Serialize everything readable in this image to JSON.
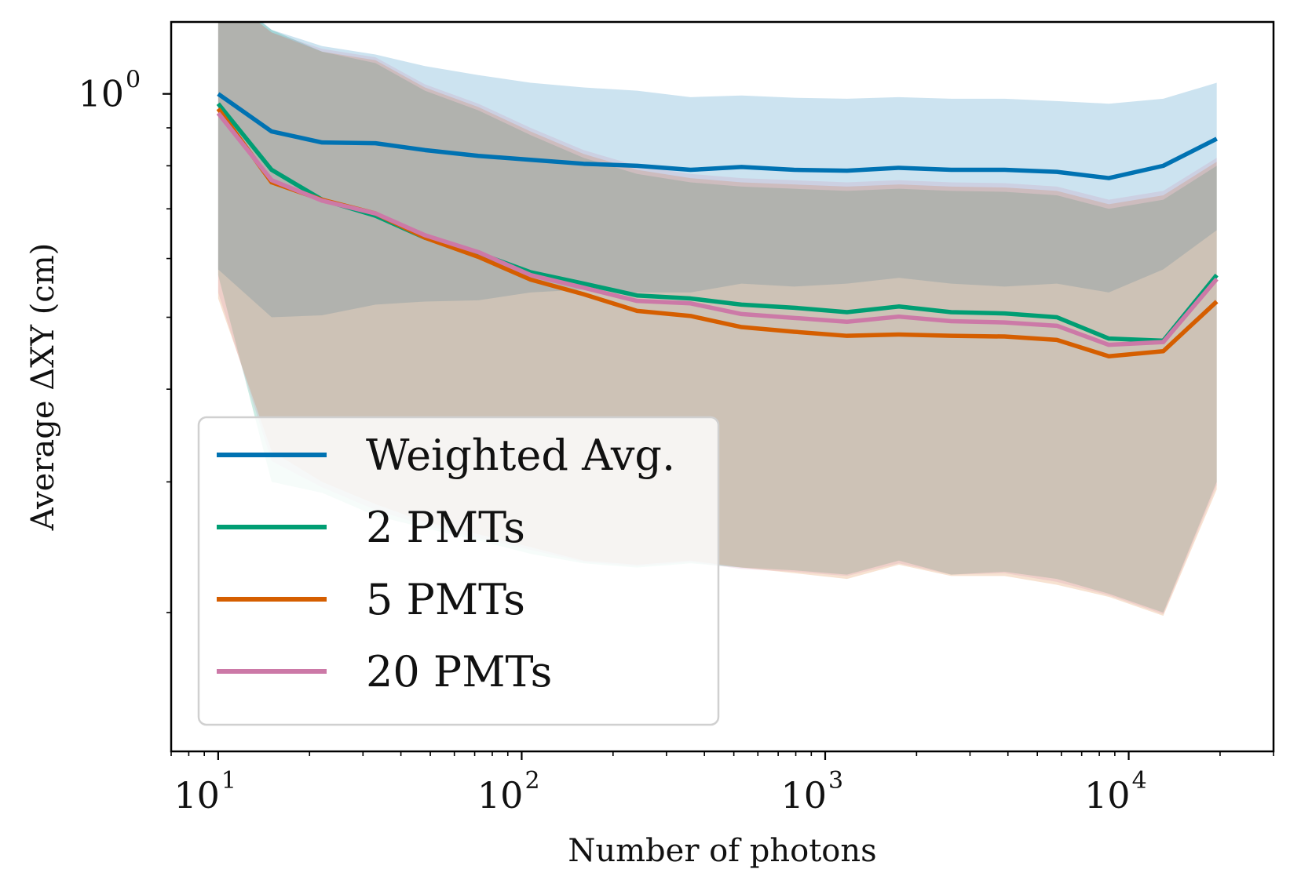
{
  "chart_data": {
    "type": "line",
    "title": "",
    "xlabel": "Number of photons",
    "ylabel": "Average ΔXY (cm)",
    "xscale": "log",
    "yscale": "log",
    "xlim": [
      7.0,
      30000
    ],
    "ylim": [
      0.13,
      1.25
    ],
    "x_ticks": [
      {
        "base": "10",
        "exp": "1",
        "value": 10
      },
      {
        "base": "10",
        "exp": "2",
        "value": 100
      },
      {
        "base": "10",
        "exp": "3",
        "value": 1000
      },
      {
        "base": "10",
        "exp": "4",
        "value": 10000
      }
    ],
    "y_ticks": [
      {
        "base": "10",
        "exp": "0",
        "value": 1
      }
    ],
    "grid": false,
    "legend_position": "lower-left",
    "x": [
      10,
      15,
      22,
      33,
      48,
      72,
      107,
      160,
      240,
      360,
      530,
      790,
      1180,
      1750,
      2600,
      3900,
      5800,
      8600,
      13000,
      19500
    ],
    "series": [
      {
        "name": "Weighted Avg.",
        "color": "#0072B2",
        "values": [
          1.0,
          0.89,
          0.86,
          0.858,
          0.84,
          0.825,
          0.815,
          0.805,
          0.8,
          0.79,
          0.797,
          0.79,
          0.788,
          0.795,
          0.79,
          0.79,
          0.785,
          0.77,
          0.8,
          0.87
        ],
        "band_upper": [
          1.4,
          1.22,
          1.16,
          1.13,
          1.09,
          1.06,
          1.035,
          1.02,
          1.01,
          0.99,
          0.995,
          0.988,
          0.985,
          0.99,
          0.985,
          0.985,
          0.978,
          0.97,
          0.985,
          1.035
        ],
        "band_lower": [
          0.58,
          0.5,
          0.503,
          0.52,
          0.525,
          0.527,
          0.54,
          0.545,
          0.54,
          0.54,
          0.555,
          0.55,
          0.555,
          0.565,
          0.555,
          0.55,
          0.555,
          0.54,
          0.58,
          0.655
        ]
      },
      {
        "name": "2 PMTs",
        "color": "#009E73",
        "values": [
          0.97,
          0.79,
          0.72,
          0.685,
          0.64,
          0.61,
          0.575,
          0.555,
          0.535,
          0.53,
          0.52,
          0.515,
          0.508,
          0.517,
          0.508,
          0.506,
          0.5,
          0.468,
          0.465,
          0.57
        ],
        "band_upper": [
          1.38,
          1.22,
          1.14,
          1.1,
          1.01,
          0.95,
          0.88,
          0.82,
          0.78,
          0.76,
          0.75,
          0.745,
          0.74,
          0.745,
          0.74,
          0.738,
          0.73,
          0.7,
          0.72,
          0.8
        ],
        "band_lower": [
          0.57,
          0.3,
          0.29,
          0.27,
          0.26,
          0.25,
          0.24,
          0.233,
          0.23,
          0.233,
          0.23,
          0.228,
          0.225,
          0.235,
          0.225,
          0.227,
          0.222,
          0.212,
          0.2,
          0.3
        ]
      },
      {
        "name": "5 PMTs",
        "color": "#D55E00",
        "values": [
          0.955,
          0.76,
          0.72,
          0.69,
          0.64,
          0.603,
          0.562,
          0.537,
          0.51,
          0.502,
          0.485,
          0.478,
          0.472,
          0.474,
          0.472,
          0.471,
          0.466,
          0.443,
          0.45,
          0.525
        ],
        "band_upper": [
          1.38,
          1.21,
          1.14,
          1.11,
          1.02,
          0.96,
          0.89,
          0.83,
          0.79,
          0.77,
          0.76,
          0.755,
          0.75,
          0.755,
          0.75,
          0.748,
          0.74,
          0.71,
          0.73,
          0.81
        ],
        "band_lower": [
          0.53,
          0.33,
          0.3,
          0.28,
          0.265,
          0.255,
          0.245,
          0.235,
          0.232,
          0.235,
          0.23,
          0.226,
          0.222,
          0.232,
          0.224,
          0.224,
          0.218,
          0.21,
          0.198,
          0.293
        ]
      },
      {
        "name": "20 PMTs",
        "color": "#CC79A7",
        "values": [
          0.942,
          0.765,
          0.718,
          0.69,
          0.645,
          0.612,
          0.57,
          0.548,
          0.526,
          0.522,
          0.505,
          0.499,
          0.493,
          0.501,
          0.494,
          0.492,
          0.487,
          0.459,
          0.463,
          0.563
        ],
        "band_upper": [
          1.37,
          1.21,
          1.15,
          1.12,
          1.03,
          0.97,
          0.9,
          0.84,
          0.8,
          0.78,
          0.77,
          0.765,
          0.76,
          0.765,
          0.76,
          0.758,
          0.75,
          0.72,
          0.74,
          0.82
        ],
        "band_lower": [
          0.54,
          0.32,
          0.295,
          0.275,
          0.262,
          0.252,
          0.243,
          0.234,
          0.231,
          0.234,
          0.229,
          0.227,
          0.224,
          0.233,
          0.225,
          0.226,
          0.22,
          0.211,
          0.199,
          0.297
        ]
      }
    ]
  }
}
